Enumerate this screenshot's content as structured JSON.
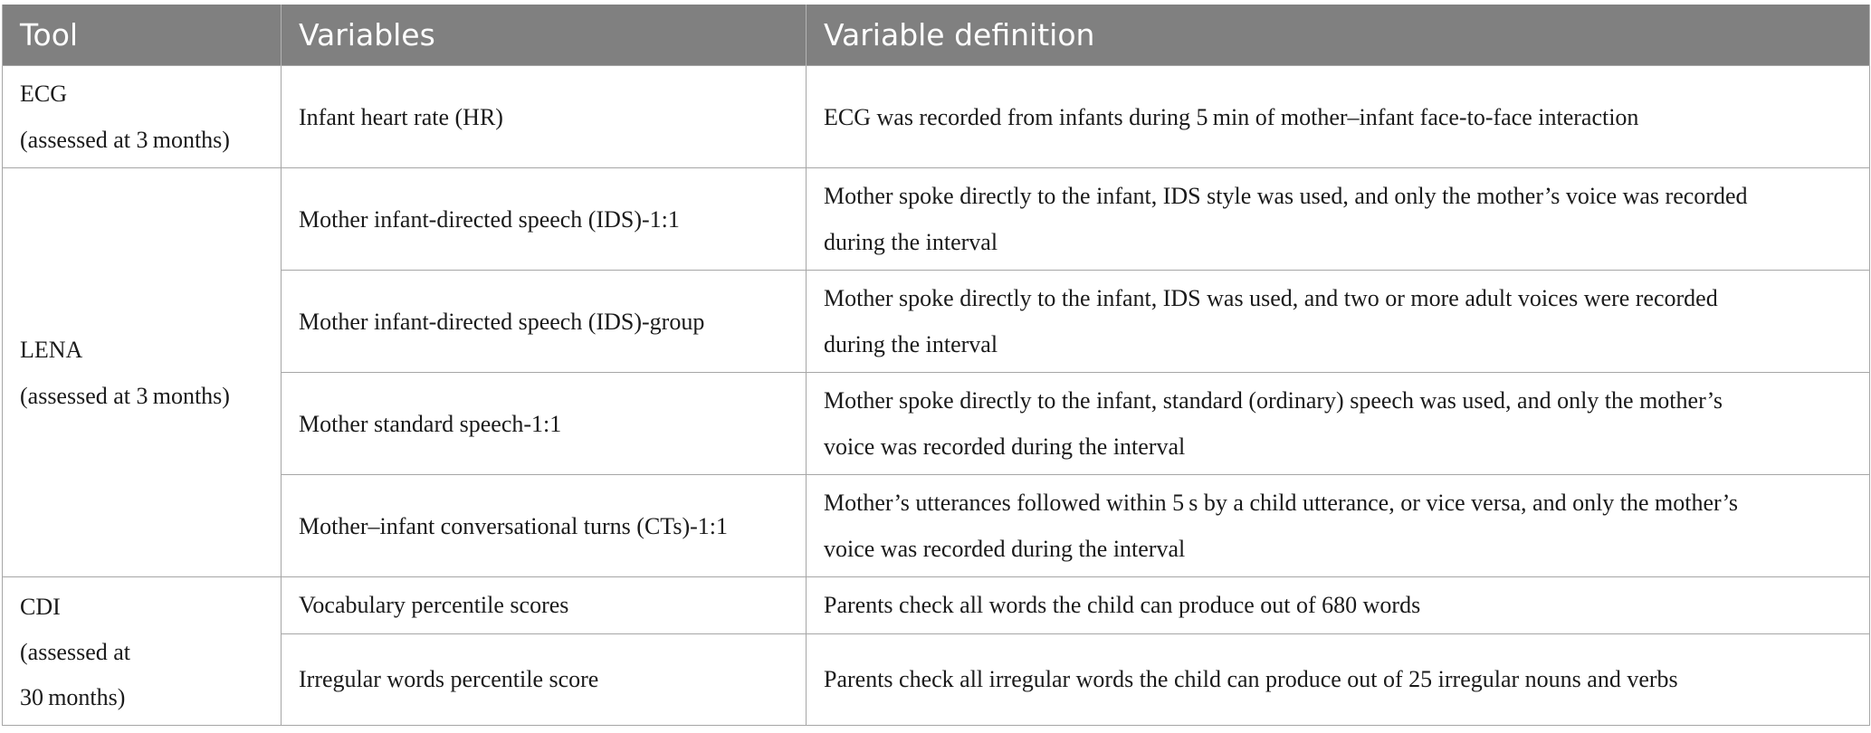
{
  "table": {
    "headers": [
      "Tool",
      "Variables",
      "Variable definition"
    ],
    "groups": [
      {
        "tool_lines": [
          "ECG",
          "(assessed at 3 months)"
        ],
        "rows": [
          {
            "variable": "Infant heart rate (HR)",
            "definition_lines": [
              "ECG was recorded from infants during 5 min of mother–infant face-to-face interaction"
            ]
          }
        ]
      },
      {
        "tool_lines": [
          "LENA",
          "(assessed at 3 months)"
        ],
        "rows": [
          {
            "variable": "Mother infant-directed speech (IDS)-1:1",
            "definition_lines": [
              "Mother spoke directly to the infant, IDS style was used, and only the mother’s voice was recorded",
              "during the interval"
            ]
          },
          {
            "variable": "Mother infant-directed speech (IDS)-group",
            "definition_lines": [
              "Mother spoke directly to the infant, IDS was used, and two or more adult voices were recorded",
              "during the interval"
            ]
          },
          {
            "variable": "Mother standard speech-1:1",
            "definition_lines": [
              "Mother spoke directly to the infant, standard (ordinary) speech was used, and only the mother’s",
              "voice was recorded during the interval"
            ]
          },
          {
            "variable": "Mother–infant conversational turns (CTs)-1:1",
            "definition_lines": [
              "Mother’s utterances followed within 5 s by a child utterance, or vice versa, and only the mother’s",
              "voice was recorded during the interval"
            ]
          }
        ]
      },
      {
        "tool_lines": [
          "CDI",
          "(assessed at",
          "30 months)"
        ],
        "rows": [
          {
            "variable": "Vocabulary percentile scores",
            "definition_lines": [
              "Parents check all words the child can produce out of 680 words"
            ]
          },
          {
            "variable": "Irregular words percentile score",
            "definition_lines": [
              "Parents check all irregular words the child can produce out of 25 irregular nouns and verbs"
            ]
          }
        ]
      }
    ]
  }
}
